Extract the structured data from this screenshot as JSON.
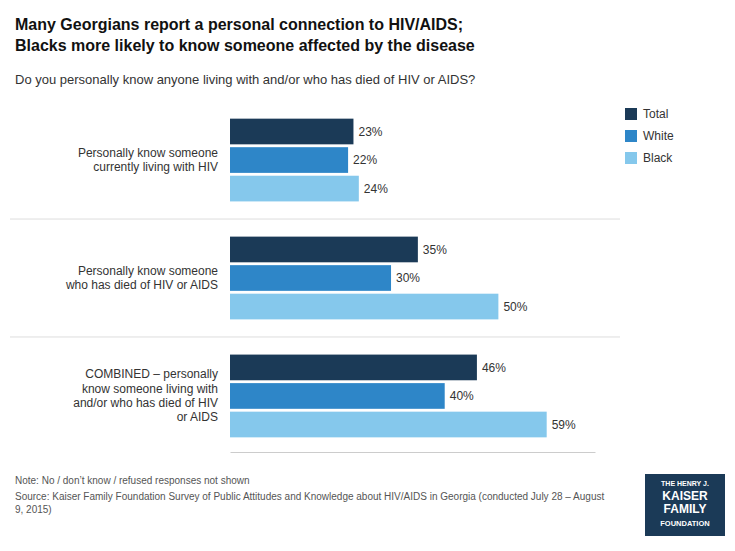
{
  "chart_data": {
    "type": "bar",
    "orientation": "horizontal",
    "title": "Many Georgians report a personal connection to HIV/AIDS;\nBlacks more likely to know someone affected by the disease",
    "subtitle": "Do you personally know anyone living with and/or who has died of HIV or AIDS?",
    "categories": [
      "Personally know someone\ncurrently living with HIV",
      "Personally know someone\nwho has died of HIV or AIDS",
      "COMBINED – personally\nknow someone living with\nand/or who has died of HIV\nor AIDS"
    ],
    "series": [
      {
        "name": "Total",
        "color": "#1b3a57",
        "values": [
          23,
          35,
          46
        ],
        "value_labels": [
          "23%",
          "35%",
          "46%"
        ]
      },
      {
        "name": "White",
        "color": "#2e86c8",
        "values": [
          22,
          30,
          40
        ],
        "value_labels": [
          "22%",
          "30%",
          "40%"
        ]
      },
      {
        "name": "Black",
        "color": "#85c8ec",
        "values": [
          24,
          50,
          59
        ],
        "value_labels": [
          "24%",
          "50%",
          "59%"
        ]
      }
    ],
    "xlim": [
      0,
      68
    ],
    "tick_labels": false,
    "grid": false,
    "legend": "right",
    "data_labels": true,
    "annotations": [
      "Note: No / don’t know / refused responses not shown",
      "Source: Kaiser Family Foundation Survey of Public Attitudes and Knowledge about HIV/AIDS in Georgia (conducted July 28 – August 9, 2015)",
      "THE HENRY J.\nKAISER\nFAMILY\nFOUNDATION"
    ]
  }
}
